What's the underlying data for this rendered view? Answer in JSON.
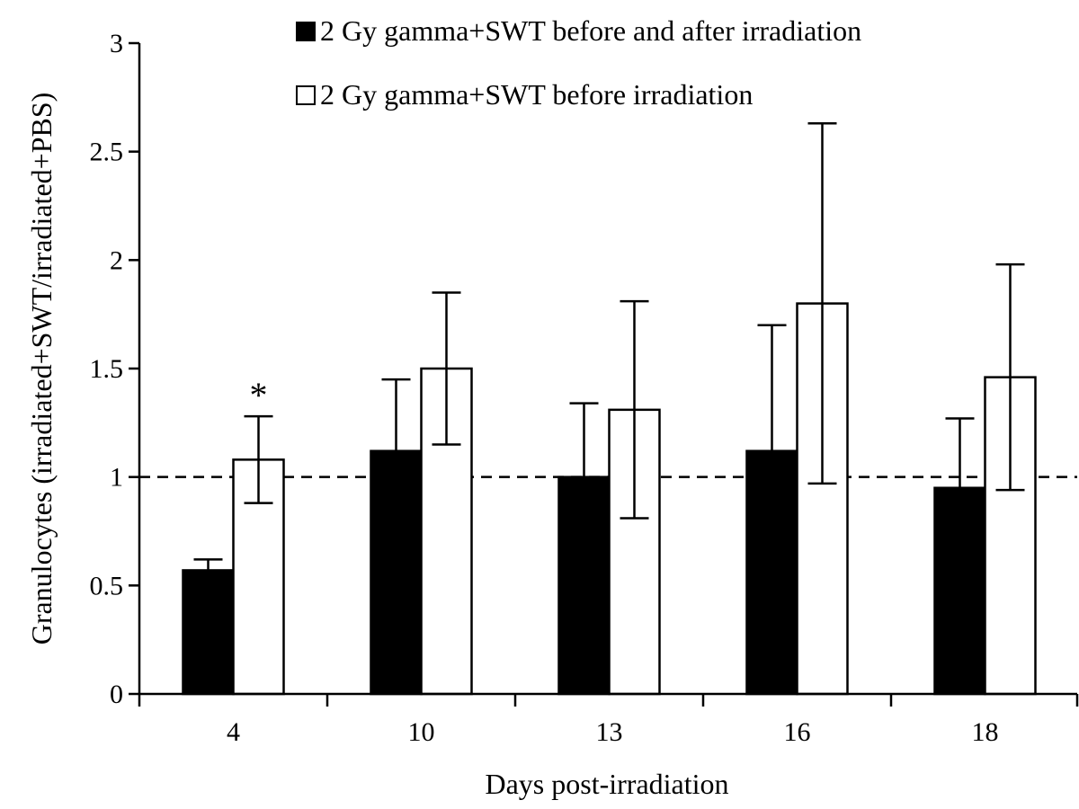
{
  "chart_data": {
    "type": "bar",
    "xlabel": "Days  post-irradiation",
    "ylabel": "Granulocytes  (irradiated+SWT/irradiated+PBS)",
    "categories": [
      "4",
      "10",
      "13",
      "16",
      "18"
    ],
    "ylim": [
      0,
      3
    ],
    "yticks": [
      "0",
      "0.5",
      "1",
      "1.5",
      "2",
      "2.5",
      "3"
    ],
    "reference_line": {
      "y": 1,
      "style": "dashed"
    },
    "series": [
      {
        "name": "2 Gy gamma+SWT before and after irradiation",
        "color": "#000000",
        "values": [
          0.57,
          1.12,
          1.0,
          1.12,
          0.95
        ],
        "errors": [
          0.05,
          0.33,
          0.34,
          0.58,
          0.32
        ]
      },
      {
        "name": "2 Gy gamma+SWT before irradiation",
        "color": "#ffffff",
        "values": [
          1.08,
          1.5,
          1.31,
          1.8,
          1.46
        ],
        "errors": [
          0.2,
          0.35,
          0.5,
          0.83,
          0.52
        ]
      }
    ],
    "annotations": [
      {
        "text": "*",
        "category": "4",
        "series": 1
      }
    ],
    "legend_position": "top-right",
    "grid": false
  }
}
